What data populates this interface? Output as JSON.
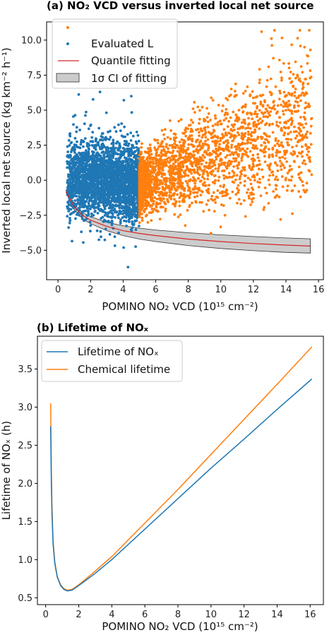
{
  "chart_data": [
    {
      "type": "scatter",
      "title": "(a) NO₂ VCD versus inverted local net source",
      "xlabel": "POMINO NO₂ VCD (10¹⁵ cm⁻²)",
      "ylabel": "Inverted local net source (kg km⁻² h⁻¹)",
      "xlim": [
        -0.7,
        16.3
      ],
      "ylim": [
        -7.1,
        11.3
      ],
      "xticks": [
        0,
        2,
        4,
        6,
        8,
        10,
        12,
        14,
        16
      ],
      "yticks": [
        -5.0,
        -2.5,
        0.0,
        2.5,
        5.0,
        7.5,
        10.0
      ],
      "xtick_labels": [
        "0",
        "2",
        "4",
        "6",
        "8",
        "10",
        "12",
        "14",
        "16"
      ],
      "ytick_labels": [
        "−5.0",
        "−2.5",
        "0.0",
        "2.5",
        "5.0",
        "7.5",
        "10.0"
      ],
      "grid": false,
      "legend_position": "top-left",
      "legend": [
        "",
        "Evaluated L",
        "Quantile fitting",
        "1σ CI of fitting"
      ],
      "series": [
        {
          "kind": "scatter",
          "color": "#ff7f0e",
          "x_range": [
            5.0,
            15.6
          ],
          "note_shape": "dense cloud whose upper envelope rises from about 6.5 at x=5 to about 10.5 at x=13-15; lower edge near -5",
          "sample_points": [
            [
              5.2,
              -1.0
            ],
            [
              6.0,
              1.5
            ],
            [
              7.0,
              2.5
            ],
            [
              8.0,
              3.0
            ],
            [
              9.0,
              2.0
            ],
            [
              10.0,
              4.0
            ],
            [
              11.0,
              4.5
            ],
            [
              12.0,
              5.5
            ],
            [
              13.0,
              4.0
            ],
            [
              14.0,
              5.0
            ],
            [
              15.5,
              9.3
            ],
            [
              12.5,
              10.6
            ],
            [
              13.3,
              10.7
            ]
          ]
        },
        {
          "legend_label": "Evaluated L",
          "kind": "scatter",
          "color": "#1f77b4",
          "x_range": [
            0.5,
            5.0
          ],
          "note_shape": "dense cloud centred near y=0, extending from about -6.3 to 6.5",
          "sample_points": [
            [
              0.6,
              0.0
            ],
            [
              1.0,
              -0.5
            ],
            [
              2.0,
              0.0
            ],
            [
              3.0,
              0.5
            ],
            [
              4.0,
              -0.5
            ],
            [
              4.5,
              6.0
            ],
            [
              4.3,
              -6.2
            ],
            [
              3.2,
              3.5
            ],
            [
              1.5,
              -2.5
            ]
          ]
        },
        {
          "legend_label": "Quantile fitting",
          "kind": "line",
          "color": "#d62728",
          "x": [
            0.5,
            1.0,
            1.5,
            2.0,
            3.0,
            4.0,
            5.0,
            6.0,
            8.0,
            10.0,
            12.0,
            14.0,
            15.5
          ],
          "y": [
            -0.8,
            -1.9,
            -2.5,
            -2.85,
            -3.3,
            -3.6,
            -3.8,
            -3.95,
            -4.2,
            -4.38,
            -4.52,
            -4.63,
            -4.7
          ]
        },
        {
          "legend_label": "1σ CI of fitting",
          "kind": "band",
          "color": "#cccccc",
          "x": [
            0.5,
            1.0,
            1.5,
            2.0,
            3.0,
            4.0,
            5.0,
            6.0,
            8.0,
            10.0,
            12.0,
            14.0,
            15.5
          ],
          "upper": [
            -0.7,
            -1.7,
            -2.3,
            -2.6,
            -3.0,
            -3.25,
            -3.42,
            -3.55,
            -3.75,
            -3.9,
            -4.02,
            -4.12,
            -4.18
          ],
          "lower": [
            -0.9,
            -2.1,
            -2.75,
            -3.1,
            -3.6,
            -3.95,
            -4.2,
            -4.38,
            -4.66,
            -4.87,
            -5.03,
            -5.15,
            -5.2
          ]
        }
      ]
    },
    {
      "type": "line",
      "title": "(b) Lifetime of NOₓ",
      "xlabel": "POMINO NO₂ VCD (10¹⁵ cm⁻²)",
      "ylabel": "Lifetime of NOₓ (h)",
      "xlim": [
        -0.5,
        16.8
      ],
      "ylim": [
        0.41,
        3.93
      ],
      "xticks": [
        0,
        2,
        4,
        6,
        8,
        10,
        12,
        14,
        16
      ],
      "yticks": [
        0.5,
        1.0,
        1.5,
        2.0,
        2.5,
        3.0,
        3.5
      ],
      "xtick_labels": [
        "0",
        "2",
        "4",
        "6",
        "8",
        "10",
        "12",
        "14",
        "16"
      ],
      "ytick_labels": [
        "0.5",
        "1.0",
        "1.5",
        "2.0",
        "2.5",
        "3.0",
        "3.5"
      ],
      "grid": false,
      "legend_position": "top-left",
      "series": [
        {
          "name": "Lifetime of NOₓ",
          "color": "#1f77b4",
          "x": [
            0.3,
            0.34,
            0.38,
            0.45,
            0.55,
            0.7,
            0.9,
            1.1,
            1.3,
            1.6,
            2.0,
            3.0,
            4.0,
            6.0,
            8.0,
            10.0,
            12.0,
            14.0,
            16.1
          ],
          "y": [
            2.75,
            2.0,
            1.6,
            1.2,
            0.95,
            0.77,
            0.66,
            0.61,
            0.59,
            0.6,
            0.66,
            0.82,
            1.0,
            1.4,
            1.8,
            2.2,
            2.58,
            2.97,
            3.37
          ]
        },
        {
          "name": "Chemical lifetime",
          "color": "#ff7f0e",
          "x": [
            0.3,
            0.34,
            0.38,
            0.45,
            0.55,
            0.7,
            0.9,
            1.1,
            1.3,
            1.6,
            2.0,
            3.0,
            4.0,
            6.0,
            8.0,
            10.0,
            12.0,
            14.0,
            16.1
          ],
          "y": [
            3.05,
            2.2,
            1.7,
            1.25,
            0.97,
            0.78,
            0.67,
            0.62,
            0.6,
            0.61,
            0.67,
            0.85,
            1.04,
            1.48,
            1.92,
            2.38,
            2.84,
            3.3,
            3.79
          ]
        }
      ]
    }
  ]
}
